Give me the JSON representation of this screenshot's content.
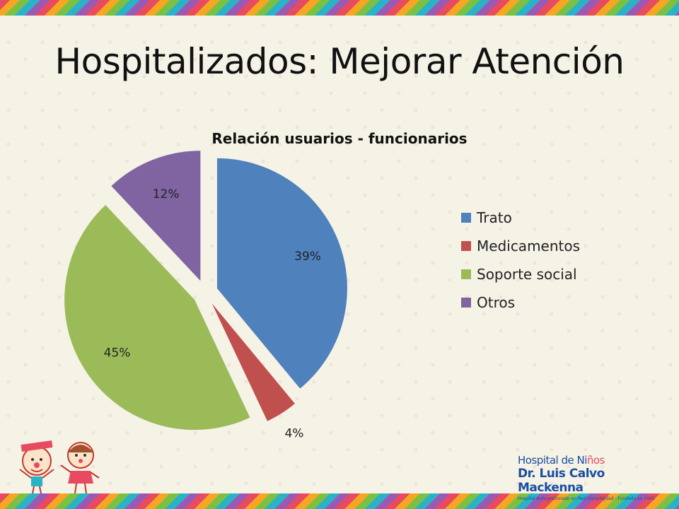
{
  "slide": {
    "title": "Hospitalizados: Mejorar Atención"
  },
  "chart_data": {
    "type": "pie",
    "title": "Relación usuarios - funcionarios",
    "categories": [
      "Trato",
      "Medicamentos",
      "Soporte social",
      "Otros"
    ],
    "values": [
      39,
      4,
      45,
      12
    ],
    "labels": [
      "39%",
      "4%",
      "45%",
      "12%"
    ],
    "colors": [
      "#4f81bd",
      "#c0504d",
      "#9bbb59",
      "#8064a2"
    ],
    "exploded": true,
    "legend_position": "right"
  },
  "logo": {
    "line1_prefix": "Hospital de Ni",
    "line1_suffix": "ños",
    "line2": "Dr. Luis Calvo Mackenna",
    "line3": "Hospital Autogestionado en Red Complejidad · Fundado en 1942"
  }
}
